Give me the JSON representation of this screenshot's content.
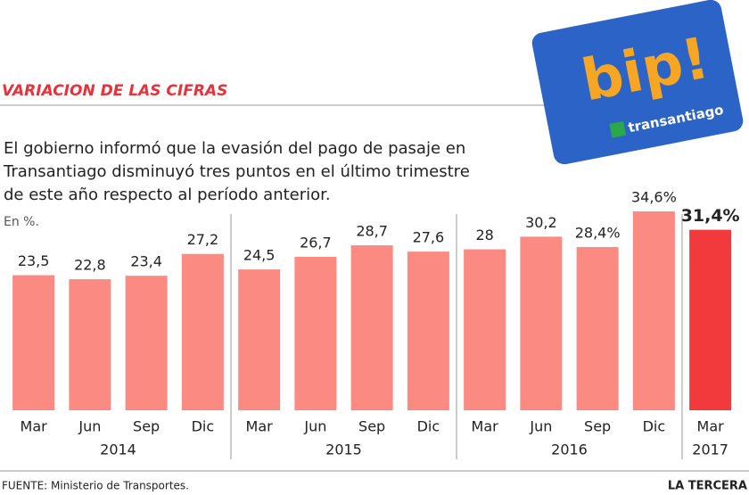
{
  "chart_data": {
    "type": "bar",
    "title": "VARIACION DE LAS CIFRAS",
    "subtitle_lines": [
      "El gobierno informó que la evasión del pago de pasaje en",
      "Transantiago disminuyó tres puntos en el último trimestre",
      "de este año respecto al período anterior."
    ],
    "unit_label": "En %.",
    "categories": [
      "Mar",
      "Jun",
      "Sep",
      "Dic",
      "Mar",
      "Jun",
      "Sep",
      "Dic",
      "Mar",
      "Jun",
      "Sep",
      "Dic",
      "Mar"
    ],
    "years": [
      "2014",
      "2015",
      "2016",
      "2017"
    ],
    "group_sizes": [
      4,
      4,
      4,
      1
    ],
    "values": [
      23.5,
      22.8,
      23.4,
      27.2,
      24.5,
      26.7,
      28.7,
      27.6,
      28,
      30.2,
      28.4,
      34.6,
      31.4
    ],
    "value_labels": [
      "23,5",
      "22,8",
      "23,4",
      "27,2",
      "24,5",
      "26,7",
      "28,7",
      "27,6",
      "28",
      "30,2",
      "28,4%",
      "34,6%",
      "31,4%"
    ],
    "colors": [
      "#fb8b82",
      "#fb8b82",
      "#fb8b82",
      "#fb8b82",
      "#fb8b82",
      "#fb8b82",
      "#fb8b82",
      "#fb8b82",
      "#fb8b82",
      "#fb8b82",
      "#fb8b82",
      "#fb8b82",
      "#f23a3c"
    ],
    "ylim": [
      0,
      36
    ],
    "source": "FUENTE: Ministerio de Transportes.",
    "credit": "LA TERCERA"
  },
  "card": {
    "brand": "bip!",
    "label": "transantiago"
  }
}
